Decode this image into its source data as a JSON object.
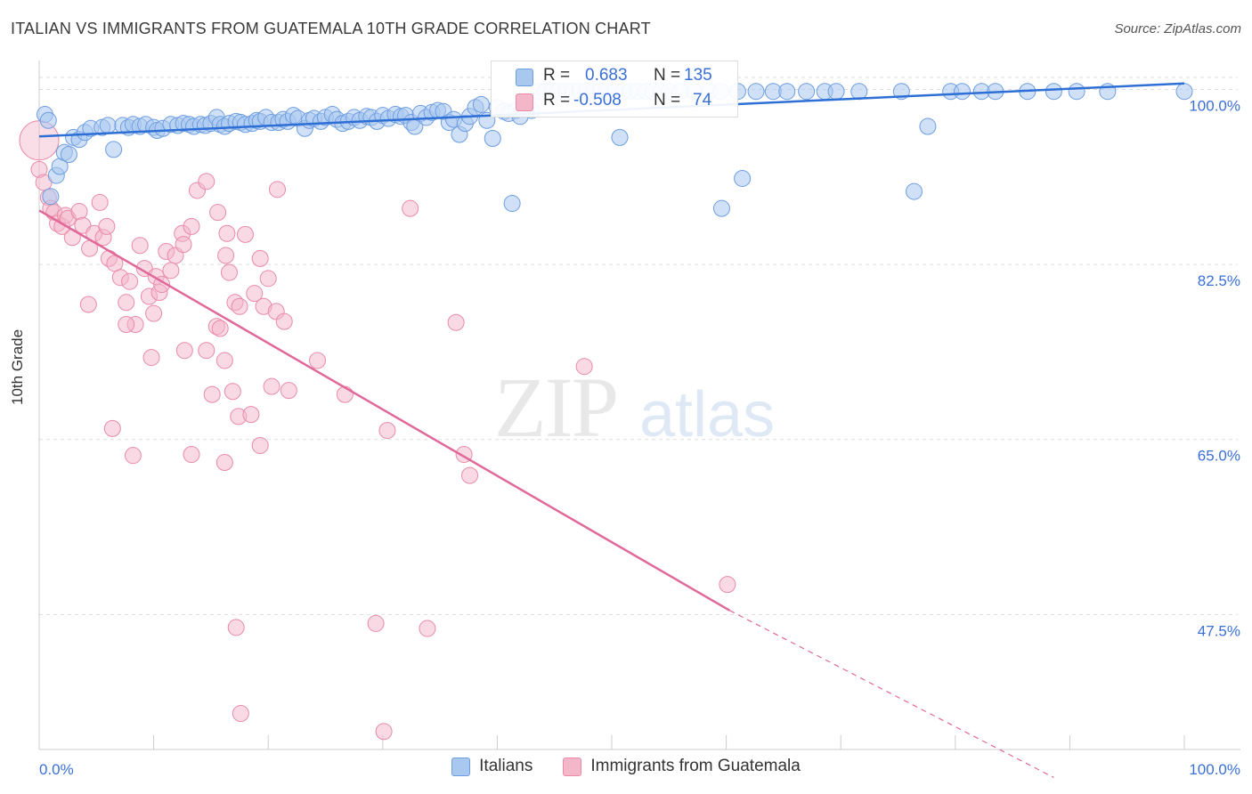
{
  "title": "ITALIAN VS IMMIGRANTS FROM GUATEMALA 10TH GRADE CORRELATION CHART",
  "source": "Source: ZipAtlas.com",
  "watermark": {
    "zip": "ZIP",
    "atlas": "atlas"
  },
  "colors": {
    "blue_fill": "#a9c8f0",
    "blue_stroke": "#6d9de0",
    "blue_line": "#2e6fd6",
    "pink_fill": "#f4b6c9",
    "pink_stroke": "#e98aa8",
    "pink_line": "#e0699a",
    "tick_label": "#3a6fd8",
    "grid": "#dddddd"
  },
  "stats": {
    "r_label": "R =",
    "n_label": "N =",
    "rows": [
      {
        "r": "0.683",
        "n": "135",
        "color": "#a9c8f0",
        "border": "#6d9de0"
      },
      {
        "r": "-0.508",
        "n": "74",
        "color": "#f4b6c9",
        "border": "#e98aa8"
      }
    ]
  },
  "legend": [
    {
      "label": "Italians",
      "color": "#a9c8f0",
      "border": "#6d9de0"
    },
    {
      "label": "Immigrants from Guatemala",
      "color": "#f4b6c9",
      "border": "#e98aa8"
    }
  ],
  "chart_data": {
    "type": "scatter",
    "title": "ITALIAN VS IMMIGRANTS FROM GUATEMALA 10TH GRADE CORRELATION CHART",
    "xlabel": "",
    "ylabel": "10th Grade",
    "xlim": [
      0,
      100
    ],
    "ylim": [
      34,
      102
    ],
    "x_tick_labels": [
      "0.0%",
      "100.0%"
    ],
    "y_ticks": [
      100,
      82.5,
      65,
      47.5
    ],
    "y_tick_labels": [
      "100.0%",
      "82.5%",
      "65.0%",
      "47.5%"
    ],
    "grid": true,
    "legend_position": "bottom",
    "series": [
      {
        "name": "Italians",
        "trend": {
          "x": [
            0,
            100
          ],
          "y": [
            95.3,
            100.6
          ],
          "dashed_to": null
        },
        "points": [
          [
            0.5,
            97.5
          ],
          [
            0.8,
            96.9
          ],
          [
            1,
            89.3
          ],
          [
            1.5,
            91.4
          ],
          [
            1.8,
            92.3
          ],
          [
            2.2,
            93.7
          ],
          [
            2.6,
            93.5
          ],
          [
            3,
            95.2
          ],
          [
            3.5,
            95
          ],
          [
            4,
            95.7
          ],
          [
            4.5,
            96.1
          ],
          [
            5.5,
            96.2
          ],
          [
            6,
            96.4
          ],
          [
            6.5,
            94
          ],
          [
            7.3,
            96.4
          ],
          [
            7.8,
            96.2
          ],
          [
            8.2,
            96.5
          ],
          [
            8.8,
            96.3
          ],
          [
            9.3,
            96.5
          ],
          [
            10,
            96.2
          ],
          [
            10.3,
            95.9
          ],
          [
            10.8,
            96.1
          ],
          [
            11.5,
            96.5
          ],
          [
            12.1,
            96.4
          ],
          [
            12.6,
            96.6
          ],
          [
            13.1,
            96.5
          ],
          [
            13.5,
            96.3
          ],
          [
            14.1,
            96.5
          ],
          [
            14.5,
            96.4
          ],
          [
            15,
            96.6
          ],
          [
            15.5,
            97.2
          ],
          [
            15.8,
            96.5
          ],
          [
            16.2,
            96.3
          ],
          [
            16.6,
            96.6
          ],
          [
            17.2,
            96.8
          ],
          [
            17.6,
            96.7
          ],
          [
            18,
            96.5
          ],
          [
            18.6,
            96.6
          ],
          [
            19,
            96.9
          ],
          [
            19.3,
            96.8
          ],
          [
            19.8,
            97.2
          ],
          [
            20.3,
            96.7
          ],
          [
            20.9,
            96.7
          ],
          [
            21.3,
            97
          ],
          [
            21.7,
            96.8
          ],
          [
            22.2,
            97.4
          ],
          [
            22.6,
            97.1
          ],
          [
            23.2,
            96.1
          ],
          [
            23.6,
            96.9
          ],
          [
            24,
            97.1
          ],
          [
            24.6,
            96.8
          ],
          [
            25,
            97.2
          ],
          [
            25.6,
            97.5
          ],
          [
            26,
            97
          ],
          [
            26.5,
            96.6
          ],
          [
            27,
            96.8
          ],
          [
            27.5,
            97.2
          ],
          [
            28,
            96.9
          ],
          [
            28.6,
            97.3
          ],
          [
            29,
            97.2
          ],
          [
            29.5,
            96.8
          ],
          [
            30,
            97.4
          ],
          [
            30.5,
            97.1
          ],
          [
            31.1,
            97.5
          ],
          [
            31.6,
            97.3
          ],
          [
            32,
            97.4
          ],
          [
            32.5,
            96.7
          ],
          [
            32.8,
            96.3
          ],
          [
            33.3,
            97.6
          ],
          [
            33.8,
            97.2
          ],
          [
            34.3,
            97.7
          ],
          [
            34.8,
            97.9
          ],
          [
            35.3,
            97.8
          ],
          [
            35.8,
            96.7
          ],
          [
            36.2,
            97
          ],
          [
            36.7,
            95.5
          ],
          [
            37.2,
            96.6
          ],
          [
            37.6,
            97.3
          ],
          [
            38.1,
            98.2
          ],
          [
            38.6,
            98.5
          ],
          [
            39.1,
            96.9
          ],
          [
            39.6,
            95.1
          ],
          [
            40,
            98.2
          ],
          [
            40.6,
            97.8
          ],
          [
            41,
            97.6
          ],
          [
            41.6,
            97.9
          ],
          [
            42,
            97.3
          ],
          [
            42.5,
            98.1
          ],
          [
            43,
            97.9
          ],
          [
            43.6,
            99.8
          ],
          [
            44.2,
            99.8
          ],
          [
            44.8,
            99.8
          ],
          [
            45.3,
            99.8
          ],
          [
            46,
            99.8
          ],
          [
            46.6,
            99.8
          ],
          [
            47.2,
            99.8
          ],
          [
            47.8,
            99.8
          ],
          [
            48.4,
            99.8
          ],
          [
            49,
            99.8
          ],
          [
            49.6,
            99.8
          ],
          [
            50.3,
            99.8
          ],
          [
            50.7,
            95.2
          ],
          [
            51,
            99.8
          ],
          [
            51.6,
            99.8
          ],
          [
            52.3,
            99.8
          ],
          [
            53,
            99.8
          ],
          [
            53.6,
            99.8
          ],
          [
            54.3,
            99.8
          ],
          [
            55,
            99.8
          ],
          [
            56,
            99.8
          ],
          [
            57.2,
            99.8
          ],
          [
            58.5,
            99.8
          ],
          [
            59.5,
            99.8
          ],
          [
            61,
            99.8
          ],
          [
            62.6,
            99.8
          ],
          [
            64.1,
            99.8
          ],
          [
            65.3,
            99.8
          ],
          [
            67,
            99.8
          ],
          [
            68.6,
            99.8
          ],
          [
            69.6,
            99.8
          ],
          [
            71.6,
            99.8
          ],
          [
            75.3,
            99.8
          ],
          [
            77.6,
            96.3
          ],
          [
            79.6,
            99.8
          ],
          [
            80.6,
            99.8
          ],
          [
            82.3,
            99.8
          ],
          [
            83.5,
            99.8
          ],
          [
            86.3,
            99.8
          ],
          [
            88.6,
            99.8
          ],
          [
            90.6,
            99.8
          ],
          [
            93.3,
            99.8
          ],
          [
            100,
            99.8
          ],
          [
            41.3,
            88.6
          ],
          [
            59.6,
            88.1
          ],
          [
            61.4,
            91.1
          ],
          [
            76.4,
            89.8
          ]
        ]
      },
      {
        "name": "Immigrants from Guatemala",
        "trend": {
          "x": [
            0,
            60.3
          ],
          "y": [
            87.9,
            47.9
          ],
          "dashed_to": {
            "x": 88.6,
            "y": 31.2
          }
        },
        "points": [
          [
            0,
            92
          ],
          [
            0.4,
            90.7
          ],
          [
            0.8,
            89.2
          ],
          [
            1,
            88.1
          ],
          [
            1.3,
            87.7
          ],
          [
            1.6,
            86.6
          ],
          [
            2,
            86.3
          ],
          [
            2.3,
            87.4
          ],
          [
            2.5,
            87.1
          ],
          [
            2.9,
            85.2
          ],
          [
            3.5,
            87.8
          ],
          [
            3.8,
            86.4
          ],
          [
            4.4,
            84.1
          ],
          [
            4.8,
            85.6
          ],
          [
            5.3,
            88.7
          ],
          [
            5.6,
            85.2
          ],
          [
            5.9,
            86.3
          ],
          [
            6.1,
            83.1
          ],
          [
            6.6,
            82.6
          ],
          [
            7.1,
            81.2
          ],
          [
            7.6,
            78.7
          ],
          [
            7.9,
            80.8
          ],
          [
            8.4,
            76.5
          ],
          [
            8.8,
            84.4
          ],
          [
            9.2,
            82.1
          ],
          [
            9.6,
            79.3
          ],
          [
            10,
            77.6
          ],
          [
            10.2,
            81.3
          ],
          [
            10.5,
            79.7
          ],
          [
            10.7,
            80.5
          ],
          [
            11.1,
            83.8
          ],
          [
            11.5,
            81.9
          ],
          [
            11.9,
            83.4
          ],
          [
            12.5,
            85.6
          ],
          [
            13.3,
            86.3
          ],
          [
            13.8,
            89.9
          ],
          [
            12.6,
            84.5
          ],
          [
            14.6,
            90.8
          ],
          [
            15.5,
            76.3
          ],
          [
            15.8,
            76.1
          ],
          [
            16.3,
            83.4
          ],
          [
            16.6,
            81.7
          ],
          [
            17.1,
            78.7
          ],
          [
            17.5,
            78.3
          ],
          [
            18,
            85.5
          ],
          [
            18.8,
            79.6
          ],
          [
            19.3,
            83.1
          ],
          [
            19.6,
            78.3
          ],
          [
            20,
            81.1
          ],
          [
            20.7,
            77.8
          ],
          [
            21.4,
            76.8
          ],
          [
            4.3,
            78.5
          ],
          [
            7.6,
            76.5
          ],
          [
            9.8,
            73.2
          ],
          [
            12.7,
            73.9
          ],
          [
            14.6,
            73.9
          ],
          [
            15.1,
            69.5
          ],
          [
            16.2,
            72.9
          ],
          [
            16.9,
            69.8
          ],
          [
            17.4,
            67.3
          ],
          [
            18.5,
            67.5
          ],
          [
            19.3,
            64.4
          ],
          [
            20.3,
            70.3
          ],
          [
            21.8,
            69.9
          ],
          [
            6.4,
            66.1
          ],
          [
            8.2,
            63.4
          ],
          [
            13.3,
            63.5
          ],
          [
            16.2,
            62.7
          ],
          [
            24.3,
            72.9
          ],
          [
            26.7,
            69.5
          ],
          [
            30.4,
            65.9
          ],
          [
            32.4,
            88.1
          ],
          [
            36.4,
            76.7
          ],
          [
            37.1,
            63.5
          ],
          [
            37.6,
            61.4
          ],
          [
            47.6,
            72.3
          ],
          [
            60.1,
            50.5
          ],
          [
            17.2,
            46.2
          ],
          [
            29.4,
            46.6
          ],
          [
            33.9,
            46.1
          ],
          [
            17.6,
            37.6
          ],
          [
            30.1,
            35.8
          ],
          [
            15.6,
            87.7
          ],
          [
            16.4,
            85.6
          ],
          [
            20.8,
            90
          ]
        ]
      }
    ]
  }
}
